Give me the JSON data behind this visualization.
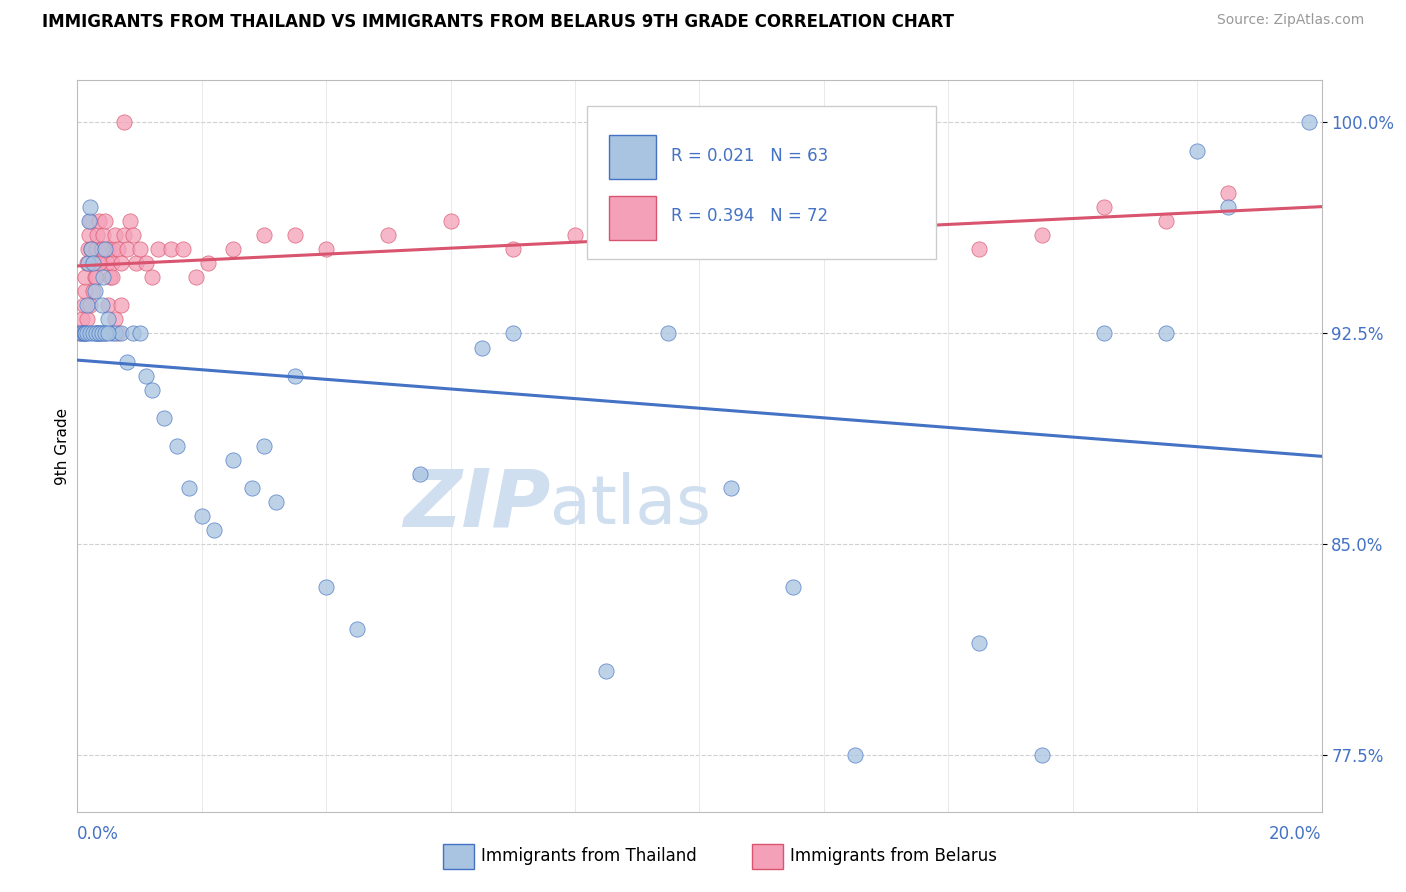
{
  "title": "IMMIGRANTS FROM THAILAND VS IMMIGRANTS FROM BELARUS 9TH GRADE CORRELATION CHART",
  "source": "Source: ZipAtlas.com",
  "ylabel": "9th Grade",
  "xmin": 0.0,
  "xmax": 20.0,
  "ymin": 75.5,
  "ymax": 101.5,
  "yticks": [
    77.5,
    85.0,
    92.5,
    100.0
  ],
  "ytick_labels": [
    "77.5%",
    "85.0%",
    "92.5%",
    "100.0%"
  ],
  "r_thailand": 0.021,
  "n_thailand": 63,
  "r_belarus": 0.394,
  "n_belarus": 72,
  "color_thailand": "#a8c4e0",
  "color_belarus": "#f4a0b8",
  "line_color_thailand": "#4472c4",
  "line_color_belarus": "#d9546e",
  "watermark_zip": "ZIP",
  "watermark_atlas": "atlas",
  "watermark_color": "#d0dff0",
  "thailand_x": [
    0.05,
    0.08,
    0.1,
    0.12,
    0.13,
    0.15,
    0.17,
    0.18,
    0.2,
    0.22,
    0.25,
    0.28,
    0.3,
    0.32,
    0.35,
    0.38,
    0.4,
    0.42,
    0.45,
    0.5,
    0.55,
    0.6,
    0.7,
    0.8,
    0.9,
    1.0,
    1.1,
    1.2,
    1.4,
    1.6,
    1.8,
    2.0,
    2.2,
    2.5,
    2.8,
    3.0,
    3.2,
    3.5,
    4.0,
    4.5,
    5.5,
    6.5,
    7.0,
    8.5,
    9.5,
    10.5,
    11.5,
    12.5,
    14.5,
    15.5,
    16.5,
    17.5,
    18.5,
    0.15,
    0.2,
    0.25,
    0.3,
    0.35,
    0.4,
    0.45,
    0.5,
    18.0,
    19.8
  ],
  "thailand_y": [
    92.5,
    92.5,
    92.5,
    92.5,
    92.5,
    93.5,
    95.0,
    96.5,
    97.0,
    95.5,
    95.0,
    94.0,
    92.5,
    92.5,
    92.5,
    92.5,
    93.5,
    94.5,
    95.5,
    93.0,
    92.5,
    92.5,
    92.5,
    91.5,
    92.5,
    92.5,
    91.0,
    90.5,
    89.5,
    88.5,
    87.0,
    86.0,
    85.5,
    88.0,
    87.0,
    88.5,
    86.5,
    91.0,
    83.5,
    82.0,
    87.5,
    92.0,
    92.5,
    80.5,
    92.5,
    87.0,
    83.5,
    77.5,
    81.5,
    77.5,
    92.5,
    92.5,
    97.0,
    92.5,
    92.5,
    92.5,
    92.5,
    92.5,
    92.5,
    92.5,
    92.5,
    99.0,
    100.0
  ],
  "belarus_x": [
    0.05,
    0.08,
    0.1,
    0.12,
    0.13,
    0.15,
    0.17,
    0.18,
    0.2,
    0.22,
    0.25,
    0.28,
    0.3,
    0.32,
    0.35,
    0.38,
    0.4,
    0.42,
    0.45,
    0.48,
    0.5,
    0.52,
    0.55,
    0.58,
    0.6,
    0.65,
    0.7,
    0.75,
    0.8,
    0.85,
    0.9,
    0.95,
    1.0,
    1.1,
    1.2,
    1.3,
    1.5,
    1.7,
    1.9,
    2.1,
    2.5,
    3.0,
    3.5,
    4.0,
    5.0,
    6.0,
    7.0,
    8.0,
    9.5,
    10.5,
    11.5,
    12.5,
    13.5,
    14.5,
    15.5,
    16.5,
    17.5,
    18.5,
    0.1,
    0.15,
    0.2,
    0.25,
    0.3,
    0.35,
    0.4,
    0.45,
    0.5,
    0.55,
    0.6,
    0.65,
    0.7,
    0.75
  ],
  "belarus_y": [
    92.5,
    93.0,
    93.5,
    94.0,
    94.5,
    95.0,
    95.5,
    96.0,
    96.5,
    95.5,
    95.0,
    94.5,
    95.5,
    96.0,
    96.5,
    95.0,
    95.5,
    96.0,
    96.5,
    95.0,
    95.5,
    94.5,
    95.0,
    95.5,
    96.0,
    95.5,
    95.0,
    96.0,
    95.5,
    96.5,
    96.0,
    95.0,
    95.5,
    95.0,
    94.5,
    95.5,
    95.5,
    95.5,
    94.5,
    95.0,
    95.5,
    96.0,
    96.0,
    95.5,
    96.0,
    96.5,
    95.5,
    96.0,
    95.5,
    96.0,
    96.5,
    95.5,
    96.0,
    95.5,
    96.0,
    97.0,
    96.5,
    97.5,
    92.5,
    93.0,
    93.5,
    94.0,
    94.5,
    95.0,
    95.5,
    92.5,
    93.5,
    94.5,
    93.0,
    92.5,
    93.5,
    100.0
  ]
}
